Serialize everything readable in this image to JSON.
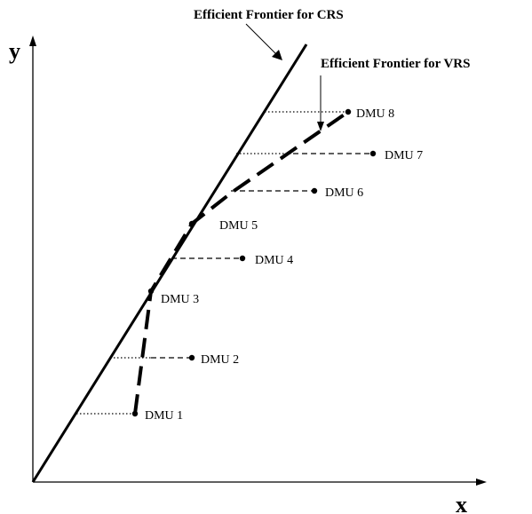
{
  "annotations": {
    "crs_title": "Efficient Frontier for CRS",
    "vrs_title": "Efficient Frontier for VRS"
  },
  "axes": {
    "x_label": "x",
    "y_label": "y"
  },
  "dmus": [
    {
      "label": "DMU 1",
      "on_vrs_frontier": true
    },
    {
      "label": "DMU 2",
      "on_vrs_frontier": false
    },
    {
      "label": "DMU 3",
      "on_vrs_frontier": true
    },
    {
      "label": "DMU 4",
      "on_vrs_frontier": false
    },
    {
      "label": "DMU 5",
      "on_vrs_frontier": true
    },
    {
      "label": "DMU 6",
      "on_vrs_frontier": false
    },
    {
      "label": "DMU 7",
      "on_vrs_frontier": false
    },
    {
      "label": "DMU 8",
      "on_vrs_frontier": true
    }
  ],
  "colors": {
    "ink": "#000000",
    "background": "#ffffff"
  }
}
